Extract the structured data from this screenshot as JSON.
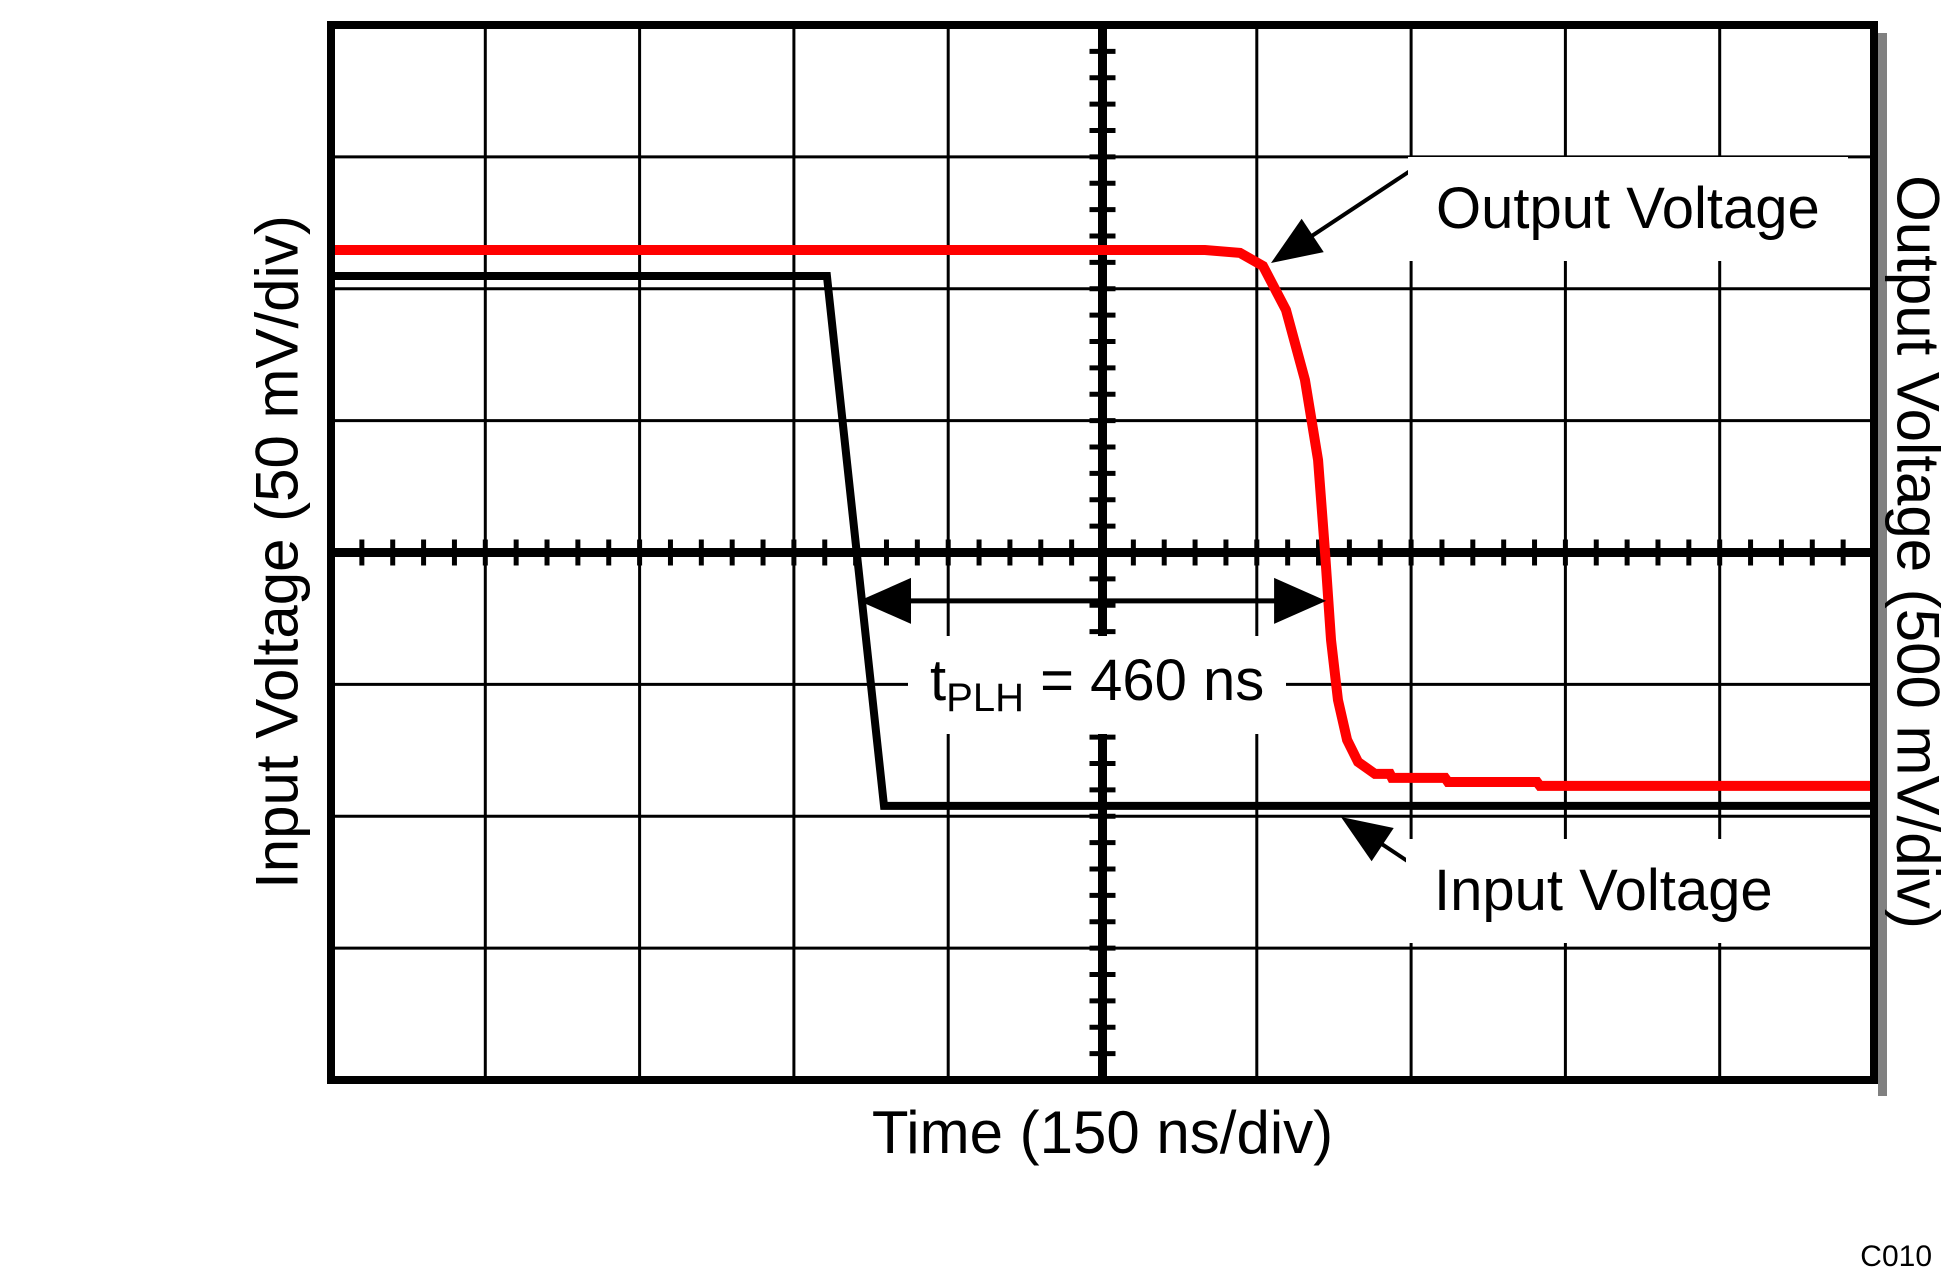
{
  "figure": {
    "xlabel": "Time (150 ns/div)",
    "ylabel_left": "Input Voltage (50 mV/div)",
    "ylabel_right": "Output Voltage (500 mV/div)",
    "code": "C010",
    "annotations": {
      "output_label": "Output Voltage",
      "input_label": "Input Voltage",
      "tplh_base": "t",
      "tplh_sub": "PLH",
      "tplh_rest": " = 460 ns"
    },
    "colors": {
      "input_trace": "#000000",
      "output_trace": "#ff0000",
      "grid": "#000000",
      "shadow": "#808080",
      "background": "#ffffff"
    }
  },
  "chart_data": {
    "type": "line",
    "title": "",
    "xlabel": "Time (150 ns/div)",
    "ylabel_left": "Input Voltage (50 mV/div)",
    "ylabel_right": "Output Voltage (500 mV/div)",
    "x_divisions": 10,
    "y_divisions": 8,
    "time_per_div_ns": 150,
    "input_scale_per_div": "50 mV",
    "output_scale_per_div": "500 mV",
    "t_plh_ns": 460,
    "grid": "oscilloscope graticule, minor ticks every 0.2 div on center crosshairs",
    "y_div_origin": "top",
    "series": [
      {
        "name": "Input Voltage",
        "color": "#000000",
        "width": 8,
        "points_div": [
          [
            0,
            1.903
          ],
          [
            3.214,
            1.903
          ],
          [
            3.584,
            5.921
          ],
          [
            10,
            5.921
          ]
        ]
      },
      {
        "name": "Output Voltage",
        "color": "#ff0000",
        "width": 10,
        "points_div": [
          [
            0,
            1.706
          ],
          [
            5.664,
            1.706
          ],
          [
            5.891,
            1.728
          ],
          [
            6.04,
            1.827
          ],
          [
            6.189,
            2.161
          ],
          [
            6.312,
            2.691
          ],
          [
            6.397,
            3.298
          ],
          [
            6.442,
            3.995
          ],
          [
            6.481,
            4.663
          ],
          [
            6.526,
            5.118
          ],
          [
            6.585,
            5.421
          ],
          [
            6.656,
            5.588
          ],
          [
            6.766,
            5.679
          ],
          [
            6.863,
            5.679
          ],
          [
            6.876,
            5.709
          ],
          [
            7.22,
            5.709
          ],
          [
            7.239,
            5.74
          ],
          [
            7.816,
            5.74
          ],
          [
            7.835,
            5.77
          ],
          [
            10,
            5.77
          ]
        ]
      }
    ],
    "tplh_arrow": {
      "x1_div": 3.422,
      "x2_div": 6.449,
      "y_div": 4.367
    },
    "pointers": {
      "output": {
        "from": [
          1410,
          171
        ],
        "to": [
          1271,
          263
        ]
      },
      "input": {
        "from": [
          1430,
          876
        ],
        "to": [
          1341,
          817
        ]
      }
    }
  }
}
